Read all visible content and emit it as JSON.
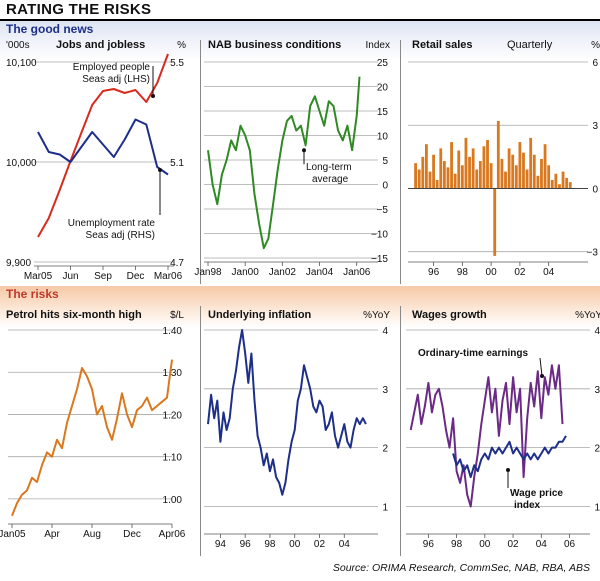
{
  "title": "RATING THE RISKS",
  "sections": {
    "good": "The good news",
    "risks": "The risks"
  },
  "source": "Source: ORIMA Research, CommSec, NAB, RBA, ABS",
  "colors": {
    "navy": "#1d2f8a",
    "red": "#d62b1f",
    "green": "#2f8a24",
    "orange": "#d9781e",
    "grid": "#9a9a9a"
  },
  "chart_data": [
    {
      "id": "jobs",
      "type": "line",
      "title": "Jobs and jobless",
      "unit_left": "'000s",
      "unit_right": "%",
      "left_ticks": [
        "10,100",
        "10,000",
        "9,900"
      ],
      "left_ylim": [
        9900,
        10100
      ],
      "right_ticks": [
        "5.5",
        "5.1",
        "4.7"
      ],
      "right_ylim": [
        4.7,
        5.5
      ],
      "x_ticks": [
        "Mar05",
        "Jun",
        "Sep",
        "Dec",
        "Mar06"
      ],
      "annotations": [
        "Employed people",
        "Seas adj (LHS)",
        "Unemployment rate",
        "Seas adj (RHS)"
      ],
      "series": [
        {
          "color": "red",
          "axis": "left",
          "values": [
            9925,
            9944,
            9972,
            10001,
            10029,
            10057,
            10071,
            10073,
            10069,
            10072,
            10060,
            10079,
            10108
          ]
        },
        {
          "color": "navy",
          "axis": "right",
          "values": [
            5.22,
            5.14,
            5.13,
            5.1,
            5.16,
            5.22,
            5.17,
            5.12,
            5.19,
            5.27,
            5.25,
            5.08,
            5.05
          ]
        }
      ]
    },
    {
      "id": "nab",
      "type": "line",
      "title": "NAB business conditions",
      "unit_right": "Index",
      "right_ticks": [
        "25",
        "20",
        "15",
        "10",
        "5",
        "0",
        "−5",
        "−10",
        "−15"
      ],
      "ylim": [
        -15,
        25
      ],
      "x_ticks": [
        "Jan98",
        "Jan00",
        "Jan02",
        "Jan04",
        "Jan06"
      ],
      "xlim": [
        1998,
        2006.5
      ],
      "annotations": [
        "Long-term",
        "average"
      ],
      "average": 7,
      "series": [
        {
          "color": "green",
          "x": [
            1998.0,
            1998.25,
            1998.5,
            1998.75,
            1999.0,
            1999.25,
            1999.5,
            1999.75,
            2000.0,
            2000.25,
            2000.5,
            2000.75,
            2001.0,
            2001.25,
            2001.5,
            2001.75,
            2002.0,
            2002.25,
            2002.5,
            2002.75,
            2003.0,
            2003.25,
            2003.5,
            2003.75,
            2004.0,
            2004.25,
            2004.5,
            2004.75,
            2005.0,
            2005.25,
            2005.5,
            2005.75,
            2006.0,
            2006.15
          ],
          "values": [
            7,
            0,
            -4,
            2,
            5,
            9,
            7,
            12,
            10,
            7,
            -2,
            -8,
            -13,
            -11,
            -4,
            3,
            9,
            13,
            14,
            11,
            12,
            8,
            16,
            18,
            15,
            12,
            17,
            16,
            11,
            9,
            12,
            7,
            14,
            22
          ]
        }
      ]
    },
    {
      "id": "retail",
      "type": "bar",
      "title": "Retail sales",
      "subtitle": "Quarterly",
      "unit_right": "%",
      "right_ticks": [
        "6",
        "3",
        "0",
        "−3"
      ],
      "ylim": [
        -3.3,
        6
      ],
      "x_ticks": [
        "96",
        "98",
        "00",
        "02",
        "04"
      ],
      "xlim": [
        1994.5,
        2005.9
      ],
      "series": [
        {
          "color": "orange",
          "x": [
            1994.75,
            1995.0,
            1995.25,
            1995.5,
            1995.75,
            1996.0,
            1996.25,
            1996.5,
            1996.75,
            1997.0,
            1997.25,
            1997.5,
            1997.75,
            1998.0,
            1998.25,
            1998.5,
            1998.75,
            1999.0,
            1999.25,
            1999.5,
            1999.75,
            2000.0,
            2000.25,
            2000.5,
            2000.75,
            2001.0,
            2001.25,
            2001.5,
            2001.75,
            2002.0,
            2002.25,
            2002.5,
            2002.75,
            2003.0,
            2003.25,
            2003.5,
            2003.75,
            2004.0,
            2004.25,
            2004.5,
            2004.75,
            2005.0,
            2005.25,
            2005.5
          ],
          "values": [
            1.2,
            0.9,
            1.5,
            2.1,
            0.8,
            1.6,
            0.4,
            1.9,
            1.3,
            1.0,
            2.2,
            0.7,
            1.8,
            1.1,
            2.4,
            1.5,
            1.9,
            0.9,
            1.3,
            2.0,
            2.3,
            1.2,
            -3.2,
            3.2,
            1.4,
            0.8,
            1.9,
            1.6,
            1.1,
            2.2,
            1.7,
            0.9,
            2.4,
            1.6,
            0.6,
            1.4,
            2.1,
            1.1,
            0.4,
            0.7,
            0.2,
            0.8,
            0.5,
            0.3
          ]
        }
      ]
    },
    {
      "id": "petrol",
      "type": "line",
      "title": "Petrol hits six-month high",
      "unit_right": "$/L",
      "right_ticks": [
        "1.40",
        "1.30",
        "1.20",
        "1.10",
        "1.00"
      ],
      "ylim": [
        0.95,
        1.4
      ],
      "x_ticks": [
        "Jan05",
        "Apr",
        "Aug",
        "Dec",
        "Apr06"
      ],
      "series": [
        {
          "color": "orange",
          "values": [
            0.96,
            0.99,
            1.01,
            1.02,
            1.05,
            1.04,
            1.08,
            1.11,
            1.1,
            1.14,
            1.12,
            1.18,
            1.22,
            1.26,
            1.31,
            1.29,
            1.26,
            1.2,
            1.22,
            1.17,
            1.14,
            1.19,
            1.25,
            1.2,
            1.17,
            1.21,
            1.22,
            1.24,
            1.21,
            1.22,
            1.23,
            1.24,
            1.33
          ]
        }
      ]
    },
    {
      "id": "inflation",
      "type": "line",
      "title": "Underlying inflation",
      "unit_right": "%YoY",
      "right_ticks": [
        "4",
        "3",
        "2",
        "1"
      ],
      "ylim": [
        0.6,
        4
      ],
      "x_ticks": [
        "94",
        "96",
        "98",
        "00",
        "02",
        "04"
      ],
      "xlim": [
        1993.0,
        2006.4
      ],
      "series": [
        {
          "color": "navy",
          "x": [
            1993.0,
            1993.25,
            1993.5,
            1993.75,
            1994.0,
            1994.25,
            1994.5,
            1994.75,
            1995.0,
            1995.25,
            1995.5,
            1995.75,
            1996.0,
            1996.25,
            1996.5,
            1996.75,
            1997.0,
            1997.25,
            1997.5,
            1997.75,
            1998.0,
            1998.25,
            1998.5,
            1998.75,
            1999.0,
            1999.25,
            1999.5,
            1999.75,
            2000.0,
            2000.25,
            2000.5,
            2000.75,
            2001.0,
            2001.25,
            2001.5,
            2001.75,
            2002.0,
            2002.25,
            2002.5,
            2002.75,
            2003.0,
            2003.25,
            2003.5,
            2003.75,
            2004.0,
            2004.25,
            2004.5,
            2004.75,
            2005.0,
            2005.25,
            2005.5,
            2005.75
          ],
          "values": [
            2.4,
            2.9,
            2.5,
            2.8,
            2.1,
            2.6,
            2.3,
            2.5,
            3.0,
            3.3,
            3.7,
            4.0,
            3.6,
            3.1,
            3.6,
            2.8,
            2.2,
            2.0,
            1.7,
            1.9,
            1.6,
            1.8,
            1.5,
            1.4,
            1.2,
            1.4,
            1.8,
            2.1,
            2.3,
            2.8,
            3.0,
            3.4,
            3.2,
            3.0,
            2.7,
            2.6,
            2.8,
            2.7,
            2.3,
            2.4,
            2.6,
            2.2,
            2.0,
            2.2,
            2.4,
            2.1,
            2.0,
            2.3,
            2.5,
            2.4,
            2.5,
            2.4
          ]
        }
      ]
    },
    {
      "id": "wages",
      "type": "line",
      "title": "Wages growth",
      "unit_right": "%YoY",
      "right_ticks": [
        "4",
        "3",
        "2",
        "1"
      ],
      "ylim": [
        0.6,
        4
      ],
      "x_ticks": [
        "96",
        "98",
        "00",
        "02",
        "04",
        "06"
      ],
      "xlim": [
        1994.7,
        2006.6
      ],
      "annotations": [
        "Ordinary-time earnings",
        "Wage price",
        "index"
      ],
      "series": [
        {
          "color": "purple",
          "x": [
            1994.75,
            1995.0,
            1995.25,
            1995.5,
            1995.75,
            1996.0,
            1996.25,
            1996.5,
            1996.75,
            1997.0,
            1997.25,
            1997.5,
            1997.75,
            1998.0,
            1998.25,
            1998.5,
            1998.75,
            1999.0,
            1999.25,
            1999.5,
            1999.75,
            2000.0,
            2000.25,
            2000.5,
            2000.75,
            2001.0,
            2001.25,
            2001.5,
            2001.75,
            2002.0,
            2002.25,
            2002.5,
            2002.75,
            2003.0,
            2003.25,
            2003.5,
            2003.75,
            2004.0,
            2004.25,
            2004.5,
            2004.75,
            2005.0,
            2005.25,
            2005.5
          ],
          "values": [
            2.3,
            2.6,
            2.9,
            2.4,
            2.7,
            3.1,
            2.6,
            2.9,
            3.0,
            2.7,
            2.3,
            2.0,
            2.5,
            1.6,
            1.4,
            1.7,
            1.2,
            1.0,
            1.5,
            1.9,
            2.4,
            2.8,
            3.2,
            2.6,
            3.0,
            2.2,
            2.8,
            3.1,
            2.4,
            3.2,
            2.6,
            3.0,
            1.5,
            2.5,
            3.1,
            2.7,
            3.3,
            2.5,
            3.2,
            2.9,
            3.4,
            3.0,
            3.4,
            2.4
          ]
        },
        {
          "color": "navy",
          "x": [
            1997.75,
            1998.0,
            1998.25,
            1998.5,
            1998.75,
            1999.0,
            1999.25,
            1999.5,
            1999.75,
            2000.0,
            2000.25,
            2000.5,
            2000.75,
            2001.0,
            2001.25,
            2001.5,
            2001.75,
            2002.0,
            2002.25,
            2002.5,
            2002.75,
            2003.0,
            2003.25,
            2003.5,
            2003.75,
            2004.0,
            2004.25,
            2004.5,
            2004.75,
            2005.0,
            2005.25,
            2005.5,
            2005.75
          ],
          "values": [
            1.9,
            1.7,
            1.8,
            1.6,
            1.7,
            1.5,
            1.7,
            1.6,
            1.8,
            1.9,
            1.8,
            2.0,
            1.9,
            2.0,
            1.9,
            2.0,
            2.1,
            1.9,
            2.0,
            1.9,
            1.8,
            1.9,
            1.8,
            1.9,
            1.8,
            1.9,
            2.0,
            1.9,
            2.0,
            2.0,
            2.1,
            2.1,
            2.2
          ]
        }
      ]
    }
  ]
}
